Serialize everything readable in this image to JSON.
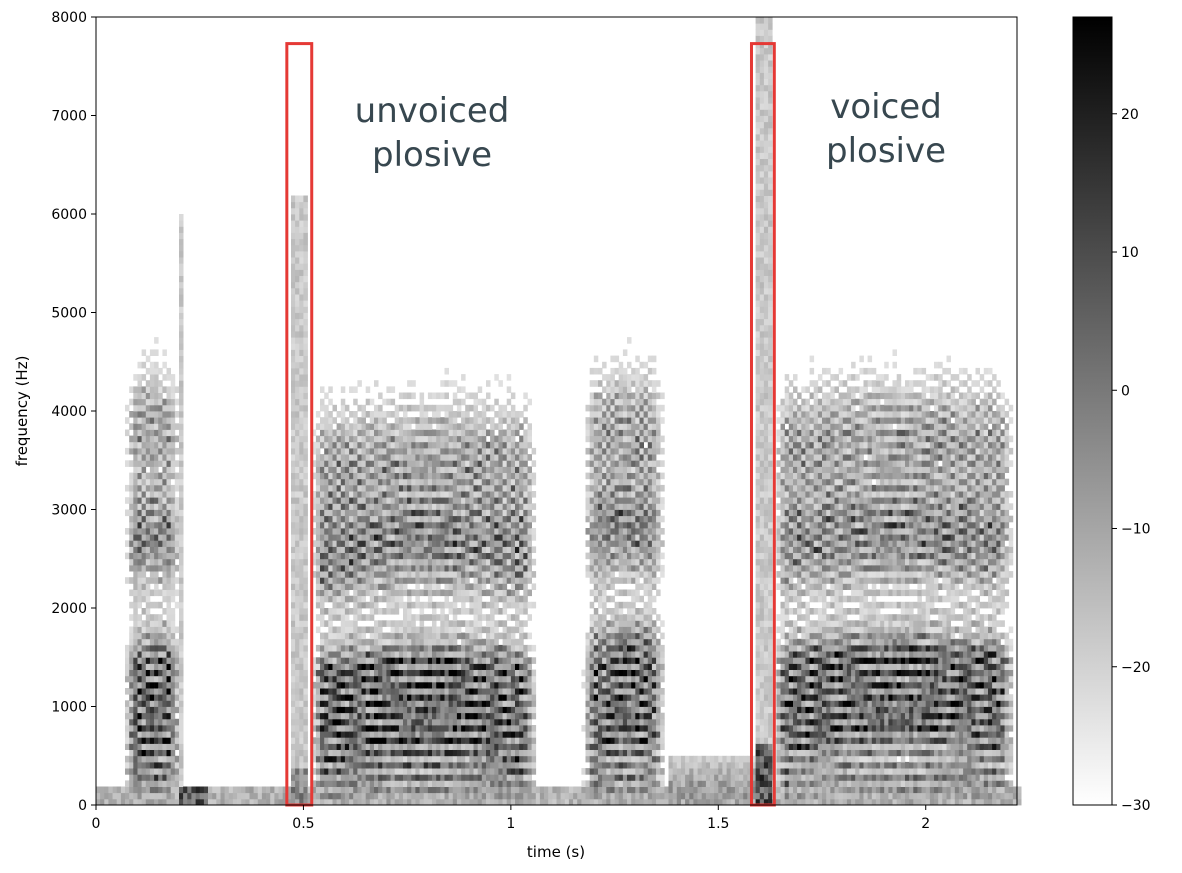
{
  "chart_data": {
    "type": "heatmap",
    "title": "",
    "xlabel": "time (s)",
    "ylabel": "frequency (Hz)",
    "xlim": [
      0,
      2.22
    ],
    "ylim": [
      0,
      8000
    ],
    "x_ticks": [
      0,
      0.5,
      1,
      1.5,
      2
    ],
    "x_tick_labels": [
      "0",
      "0.5",
      "1",
      "1.5",
      "2"
    ],
    "y_ticks": [
      0,
      1000,
      2000,
      3000,
      4000,
      5000,
      6000,
      7000,
      8000
    ],
    "y_tick_labels": [
      "0",
      "1000",
      "2000",
      "3000",
      "4000",
      "5000",
      "6000",
      "7000",
      "8000"
    ],
    "colormap": "gray_r",
    "colorbar": {
      "range": [
        -30,
        27
      ],
      "ticks": [
        -30,
        -20,
        -10,
        0,
        10,
        20
      ],
      "tick_labels": [
        "−30",
        "−20",
        "−10",
        "0",
        "10",
        "20"
      ],
      "color_low": "#ffffff",
      "color_high": "#000000"
    },
    "grid": false,
    "voiced_segments": [
      {
        "start": 0.065,
        "end": 0.215,
        "formants_hz": [
          700,
          1200,
          2600,
          3700
        ],
        "max_freq_hz": 5000
      },
      {
        "start": 0.515,
        "end": 1.07,
        "formants_hz": [
          800,
          1100,
          2500,
          3400
        ],
        "max_freq_hz": 5000
      },
      {
        "start": 1.17,
        "end": 1.38,
        "formants_hz": [
          800,
          1300,
          2700,
          3700
        ],
        "max_freq_hz": 5200
      },
      {
        "start": 1.63,
        "end": 2.22,
        "formants_hz": [
          900,
          1200,
          2600,
          3600
        ],
        "max_freq_hz": 5200
      }
    ],
    "highlights": [
      {
        "label": "unvoiced plosive",
        "x_start": 0.46,
        "x_end": 0.52,
        "y_top_hz": 7730,
        "color": "#e53935"
      },
      {
        "label": "voiced plosive",
        "x_start": 1.58,
        "x_end": 1.635,
        "y_top_hz": 7730,
        "color": "#e53935"
      }
    ]
  },
  "annotations": {
    "unvoiced_line1": "unvoiced",
    "unvoiced_line2": "plosive",
    "voiced_line1": "voiced",
    "voiced_line2": "plosive"
  }
}
